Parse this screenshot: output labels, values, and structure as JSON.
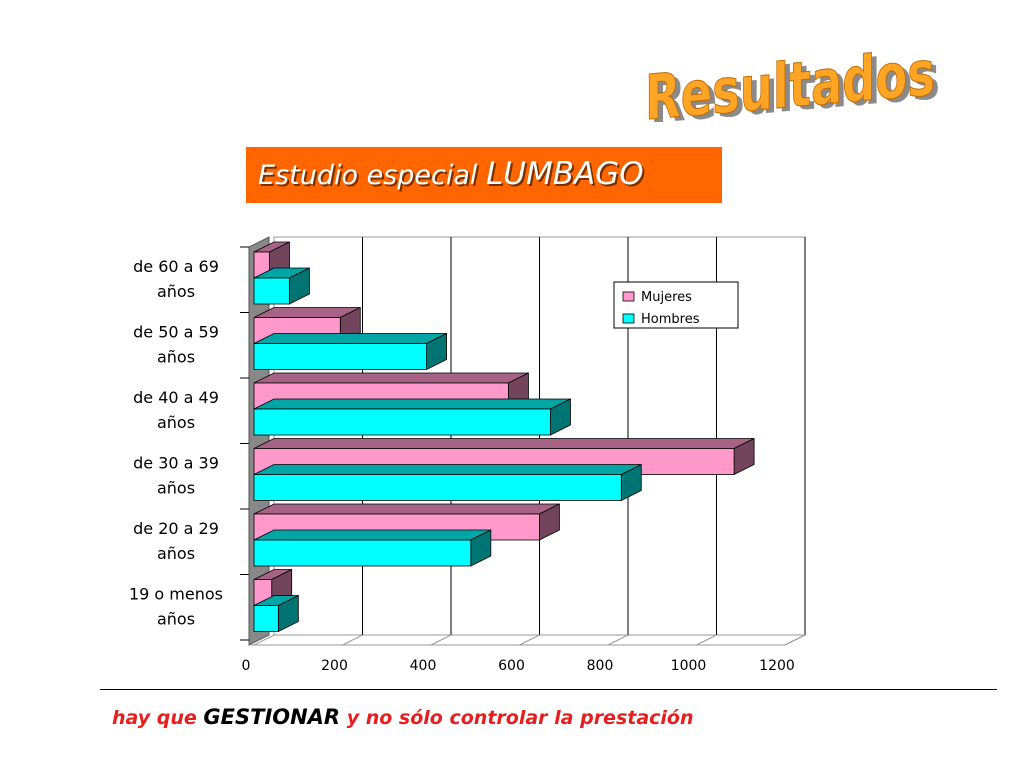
{
  "header": {
    "title": "Resultados",
    "subtitle_prefix": "Estudio especial",
    "subtitle_emphasis": "LUMBAGO"
  },
  "footer": {
    "part1": "hay que",
    "part2": "GESTIONAR",
    "part3": "y no sólo controlar la prestación"
  },
  "colors": {
    "title_orange": "#ffa526",
    "subtitle_bg": "#ff6600",
    "mujeres": "#ff99cc",
    "hombres": "#00ffff",
    "footer_red": "#e61e1e"
  },
  "chart_data": {
    "type": "bar",
    "orientation": "horizontal",
    "three_d": true,
    "categories": [
      [
        "de 60 a 69",
        "años"
      ],
      [
        "de 50 a 59",
        "años"
      ],
      [
        "de 40 a 49",
        "años"
      ],
      [
        "de 30 a 39",
        "años"
      ],
      [
        "de 20 a 29",
        "años"
      ],
      [
        "19 o menos",
        "años"
      ]
    ],
    "series": [
      {
        "name": "Mujeres",
        "color": "#ff99cc",
        "values": [
          35,
          195,
          575,
          1085,
          645,
          40
        ]
      },
      {
        "name": "Hombres",
        "color": "#00ffff",
        "values": [
          80,
          390,
          670,
          830,
          490,
          55
        ]
      }
    ],
    "xlim": [
      0,
      1200
    ],
    "x_ticks": [
      "0",
      "200",
      "400",
      "600",
      "800",
      "1000",
      "1200"
    ],
    "grid": true,
    "legend": "top-right"
  }
}
